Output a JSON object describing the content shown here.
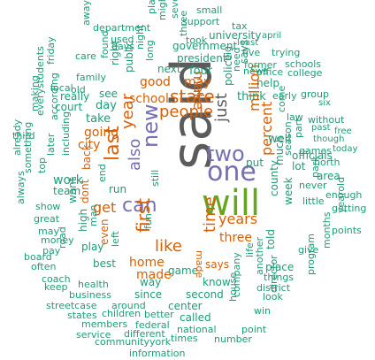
{
  "palette": {
    "gray": "#5b5b5b",
    "green": "#1b9e77",
    "orange": "#d95f02",
    "purple": "#7570b3",
    "olive": "#66a61e"
  },
  "words": [
    "said",
    "will",
    "one",
    "two",
    "new",
    "last",
    "can",
    "first",
    "state",
    "people",
    "like",
    "years",
    "also",
    "year",
    "time",
    "just",
    "get",
    "home",
    "made",
    "make",
    "good",
    "may",
    "school",
    "three",
    "going",
    "city",
    "says",
    "percent",
    "million",
    "work",
    "day",
    "take",
    "dont",
    "back",
    "well",
    "see",
    "think",
    "help",
    "week",
    "county",
    "game",
    "way",
    "since",
    "second",
    "called",
    "know",
    "national",
    "company",
    "center",
    "told",
    "public",
    "government",
    "president",
    "four",
    "next",
    "high",
    "including",
    "team",
    "want",
    "show",
    "great",
    "money",
    "play",
    "best",
    "business",
    "health",
    "court",
    "family",
    "local",
    "really",
    "found",
    "old",
    "part",
    "officials",
    "lot",
    "three",
    "university",
    "police",
    "says",
    "news",
    "games",
    "season",
    "much",
    "never",
    "area",
    "north",
    "little",
    "points",
    "getting",
    "enough",
    "small",
    "support",
    "tax",
    "took",
    "department",
    "used",
    "days",
    "night",
    "right",
    "long",
    "around",
    "children",
    "members",
    "service",
    "community",
    "information",
    "york",
    "times",
    "number",
    "point",
    "director",
    "program",
    "months",
    "yearold",
    "park",
    "give",
    "things",
    "district",
    "place",
    "win",
    "house",
    "another",
    "put",
    "without",
    "group",
    "schools",
    "college",
    "former",
    "five",
    "trying",
    "april",
    "least",
    "office",
    "big",
    "need",
    "six",
    "past",
    "free",
    "though",
    "today",
    "early",
    "come",
    "law",
    "better",
    "federal",
    "different",
    "life",
    "look",
    "coach",
    "keep",
    "board",
    "often",
    "streetcase",
    "states",
    "may",
    "road",
    "pay",
    "later",
    "top",
    "already",
    "always",
    "third",
    "something",
    "everystudents",
    "according",
    "making",
    "friday",
    "away",
    "care",
    "plan",
    "might",
    "several",
    "run",
    "end",
    "left",
    "even",
    "still",
    "made",
    "man",
    "fun"
  ]
}
